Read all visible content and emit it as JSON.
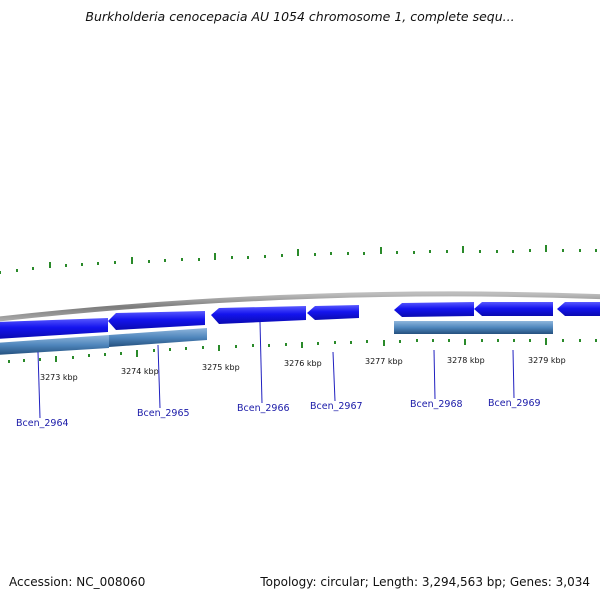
{
  "title": "Burkholderia cenocepacia AU 1054 chromosome 1, complete sequ...",
  "footer": {
    "accession": "Accession: NC_008060",
    "summary": "Topology: circular; Length: 3,294,563 bp; Genes: 3,034"
  },
  "colors": {
    "forward_gene": "#1010e8",
    "reverse_gene": "#4f86bc",
    "backbone": "#8a8a8a",
    "gc_ticks": "#2a8a2a",
    "label_line": "#2020c0",
    "label_text": "#1a1aa8"
  },
  "ruler": {
    "labels": [
      "3273 kbp",
      "3274 kbp",
      "3275 kbp",
      "3276 kbp",
      "3277 kbp",
      "3278 kbp",
      "3279 kbp"
    ]
  },
  "genes": [
    {
      "name": "Bcen_2964"
    },
    {
      "name": "Bcen_2965"
    },
    {
      "name": "Bcen_2966"
    },
    {
      "name": "Bcen_2967"
    },
    {
      "name": "Bcen_2968"
    },
    {
      "name": "Bcen_2969"
    }
  ]
}
